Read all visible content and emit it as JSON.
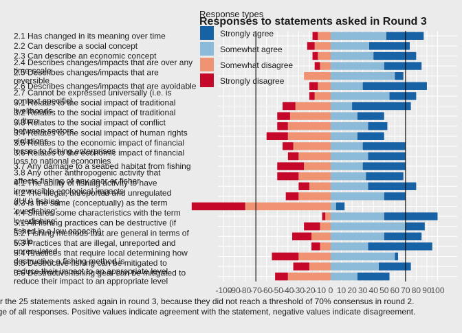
{
  "chart_data": {
    "type": "bar",
    "orientation": "horizontal",
    "stacked": "diverging",
    "title": "Responses to statements asked in Round 3",
    "legend_title": "Response types",
    "legend_position": "top-right",
    "xlim": [
      -100,
      100
    ],
    "x_ticks": [
      -100,
      -90,
      -80,
      -70,
      -60,
      -50,
      -40,
      -30,
      -20,
      -10,
      0,
      10,
      20,
      30,
      40,
      50,
      60,
      70,
      80,
      90,
      100
    ],
    "x_tick_labels": [
      "-100",
      "-90",
      "-80",
      "-70",
      "-60",
      "-50",
      "-40",
      "-30",
      "-20",
      "-10",
      "0",
      "10",
      "20",
      "30",
      "40",
      "50",
      "60",
      "70",
      "80",
      "90",
      "100"
    ],
    "reference_lines": [
      -70,
      70
    ],
    "grid": true,
    "caption_lines": [
      "for the 25 statements asked again in round 3, because they did not reach a threshold of 70% consensus in round 2.",
      "age of all responses. Positive values indicate agreement with the statement, negative values indicate disagreement."
    ],
    "series": [
      {
        "name": "Strongly agree",
        "color": "#1761a5"
      },
      {
        "name": "Somewhat agree",
        "color": "#8bbbd9"
      },
      {
        "name": "Somewhat disagree",
        "color": "#ef9373"
      },
      {
        "name": "Strongly disagree",
        "color": "#c5072a"
      }
    ],
    "statements": [
      {
        "label": "2.1 Has changed in its meaning over time",
        "strongly_agree": 35,
        "somewhat_agree": 52,
        "somewhat_disagree": 12,
        "strongly_disagree": 5
      },
      {
        "label": "2.2 Can describe a social concept",
        "strongly_agree": 38,
        "somewhat_agree": 36,
        "somewhat_disagree": 15,
        "strongly_disagree": 7
      },
      {
        "label": "2.3 Can describe an economic concept",
        "strongly_agree": 40,
        "somewhat_agree": 40,
        "somewhat_disagree": 12,
        "strongly_disagree": 5
      },
      {
        "label": "2.4 Describes changes/impacts that are over any time-scale",
        "strongly_agree": 35,
        "somewhat_agree": 50,
        "somewhat_disagree": 10,
        "strongly_disagree": 5
      },
      {
        "label": "2.5 Describes changes/impacts that are reversible",
        "strongly_agree": 8,
        "somewhat_agree": 60,
        "somewhat_disagree": 25,
        "strongly_disagree": 0
      },
      {
        "label": "2.6 Describes changes/impacts that are avoidable",
        "strongly_agree": 60,
        "somewhat_agree": 30,
        "somewhat_disagree": 12,
        "strongly_disagree": 8
      },
      {
        "label": "2.7 Cannot be expressed universally (i.e. is context specific)",
        "strongly_agree": 25,
        "somewhat_agree": 55,
        "somewhat_disagree": 15,
        "strongly_disagree": 5
      },
      {
        "label": "3.1 Relates to the social impact of traditional livelihoods",
        "strongly_agree": 55,
        "somewhat_agree": 20,
        "somewhat_disagree": 33,
        "strongly_disagree": 12
      },
      {
        "label": "3.2 Relates to the social impact of traditional culture",
        "strongly_agree": 25,
        "somewhat_agree": 25,
        "somewhat_disagree": 38,
        "strongly_disagree": 12
      },
      {
        "label": "3.3 Relates to the social impact of conflict between sectors",
        "strongly_agree": 18,
        "somewhat_agree": 35,
        "somewhat_disagree": 40,
        "strongly_disagree": 10
      },
      {
        "label": "3.4 Relates to the social impact of human rights violations",
        "strongly_agree": 25,
        "somewhat_agree": 25,
        "somewhat_disagree": 40,
        "strongly_disagree": 20
      },
      {
        "label": "3.5 Relates to the economic impact of financial losses to fishing enterprises",
        "strongly_agree": 40,
        "somewhat_agree": 30,
        "somewhat_disagree": 35,
        "strongly_disagree": 10
      },
      {
        "label": "3.6 Relates to the economic impact of financial loss to national economies",
        "strongly_agree": 35,
        "somewhat_agree": 35,
        "somewhat_disagree": 30,
        "strongly_disagree": 10
      },
      {
        "label": "3.7 Any damage to a seabed habitat from fishing",
        "strongly_agree": 40,
        "somewhat_agree": 30,
        "somewhat_disagree": 25,
        "strongly_disagree": 25
      },
      {
        "label": "3.8 Any other anthropogenic activity that affects fishing of any gear or fisher",
        "strongly_agree": 35,
        "somewhat_agree": 33,
        "somewhat_disagree": 30,
        "strongly_disagree": 20
      },
      {
        "label": "4.1 The ability of fishing activity to have irreversible ecological impacts",
        "strongly_agree": 45,
        "somewhat_agree": 35,
        "somewhat_disagree": 20,
        "strongly_disagree": 10
      },
      {
        "label": "4.2 The illegal, unreported and unregulated (IUU) fishing",
        "strongly_agree": 20,
        "somewhat_agree": 50,
        "somewhat_disagree": 30,
        "strongly_disagree": 12
      },
      {
        "label": "4.3 Is the same (conceptually) as the term 'overfishing'",
        "strongly_agree": 8,
        "somewhat_agree": 5,
        "somewhat_disagree": 80,
        "strongly_disagree": 50
      },
      {
        "label": "4.4 Shares some characteristics with the term 'overfishing'",
        "strongly_agree": 50,
        "somewhat_agree": 50,
        "somewhat_disagree": 5,
        "strongly_disagree": 3
      },
      {
        "label": "5.1 All fishing practices can be destructive (if fished in a low capacity)",
        "strongly_agree": 18,
        "somewhat_agree": 70,
        "somewhat_disagree": 10,
        "strongly_disagree": 15
      },
      {
        "label": "5.2 Fishing methods that are general in terms of scale",
        "strongly_agree": 35,
        "somewhat_agree": 50,
        "somewhat_disagree": 18,
        "strongly_disagree": 18
      },
      {
        "label": "5.3 Practices that are illegal, unreported and unregulated",
        "strongly_agree": 60,
        "somewhat_agree": 35,
        "somewhat_disagree": 10,
        "strongly_disagree": 8
      },
      {
        "label": "5.4 Practices that require local determining how destructive a fishing method is",
        "strongly_agree": 3,
        "somewhat_agree": 60,
        "somewhat_disagree": 30,
        "strongly_disagree": 25
      },
      {
        "label": "5.5 Destructive fishing can be mitigated to reduce their impact to an appropriate level",
        "strongly_agree": 30,
        "somewhat_agree": 45,
        "somewhat_disagree": 20,
        "strongly_disagree": 15
      },
      {
        "label": "5.6 Destructive fishing gear can be mitigated to reduce their impact to an appropriate level",
        "strongly_agree": 30,
        "somewhat_agree": 25,
        "somewhat_disagree": 40,
        "strongly_disagree": 12
      }
    ]
  }
}
